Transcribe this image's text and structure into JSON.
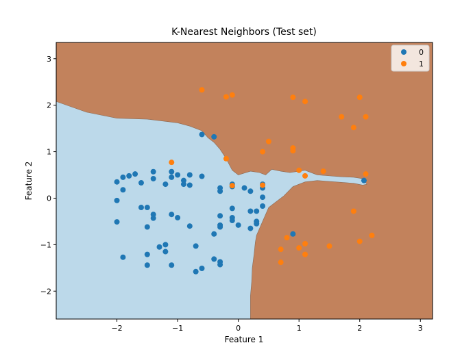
{
  "chart_data": {
    "type": "scatter",
    "title": "K-Nearest Neighbors (Test set)",
    "xlabel": "Feature 1",
    "ylabel": "Feature 2",
    "xlim": [
      -3.0,
      3.2
    ],
    "ylim": [
      -2.6,
      3.35
    ],
    "xticks": [
      -2,
      -1,
      0,
      1,
      2,
      3
    ],
    "yticks": [
      -2,
      -1,
      0,
      1,
      2,
      3
    ],
    "xtick_labels": [
      "−2",
      "−1",
      "0",
      "1",
      "2",
      "3"
    ],
    "ytick_labels": [
      "−2",
      "−1",
      "0",
      "1",
      "2",
      "3"
    ],
    "grid": false,
    "legend_placement": "top-right",
    "region_colors": {
      "0": "#bcd9ea",
      "1": "#c2825c"
    },
    "decision_boundary": [
      [
        -3.0,
        2.08
      ],
      [
        -2.5,
        1.85
      ],
      [
        -2.0,
        1.72
      ],
      [
        -1.5,
        1.7
      ],
      [
        -1.0,
        1.62
      ],
      [
        -0.8,
        1.55
      ],
      [
        -0.6,
        1.45
      ],
      [
        -0.5,
        1.3
      ],
      [
        -0.4,
        1.2
      ],
      [
        -0.3,
        1.05
      ],
      [
        -0.2,
        0.85
      ],
      [
        -0.1,
        0.6
      ],
      [
        0.0,
        0.5
      ],
      [
        0.2,
        0.58
      ],
      [
        0.35,
        0.55
      ],
      [
        0.45,
        0.5
      ],
      [
        0.55,
        0.62
      ],
      [
        0.7,
        0.58
      ],
      [
        0.85,
        0.55
      ],
      [
        1.0,
        0.58
      ],
      [
        1.1,
        0.6
      ],
      [
        1.3,
        0.5
      ],
      [
        1.5,
        0.48
      ],
      [
        1.7,
        0.46
      ],
      [
        1.9,
        0.45
      ],
      [
        2.05,
        0.42
      ],
      [
        2.12,
        0.3
      ],
      [
        2.05,
        0.28
      ],
      [
        1.9,
        0.32
      ],
      [
        1.6,
        0.35
      ],
      [
        1.3,
        0.38
      ],
      [
        1.1,
        0.35
      ],
      [
        0.9,
        0.25
      ],
      [
        0.75,
        0.05
      ],
      [
        0.6,
        -0.1
      ],
      [
        0.5,
        -0.2
      ],
      [
        0.45,
        -0.35
      ],
      [
        0.4,
        -0.5
      ],
      [
        0.35,
        -0.65
      ],
      [
        0.3,
        -0.8
      ],
      [
        0.28,
        -0.95
      ],
      [
        0.26,
        -1.2
      ],
      [
        0.23,
        -1.5
      ],
      [
        0.22,
        -1.8
      ],
      [
        0.2,
        -2.1
      ],
      [
        0.2,
        -2.6
      ]
    ],
    "series": [
      {
        "name": "0",
        "color": "#1f77b4",
        "points": [
          [
            -2.0,
            0.35
          ],
          [
            -1.9,
            0.45
          ],
          [
            -1.8,
            0.48
          ],
          [
            -1.7,
            0.52
          ],
          [
            -1.6,
            0.33
          ],
          [
            -1.4,
            0.57
          ],
          [
            -1.4,
            0.42
          ],
          [
            -1.2,
            0.3
          ],
          [
            -1.1,
            0.57
          ],
          [
            -1.1,
            0.45
          ],
          [
            -1.0,
            0.5
          ],
          [
            -0.9,
            0.38
          ],
          [
            -0.9,
            0.3
          ],
          [
            -0.8,
            0.5
          ],
          [
            -0.8,
            0.28
          ],
          [
            -0.6,
            0.47
          ],
          [
            -1.9,
            0.18
          ],
          [
            -2.0,
            -0.05
          ],
          [
            -1.6,
            -0.2
          ],
          [
            -1.5,
            -0.2
          ],
          [
            -1.4,
            -0.35
          ],
          [
            -1.4,
            -0.43
          ],
          [
            -1.5,
            -0.62
          ],
          [
            -1.1,
            -0.35
          ],
          [
            -1.0,
            -0.42
          ],
          [
            -0.8,
            -0.6
          ],
          [
            -2.0,
            -0.51
          ],
          [
            -0.6,
            1.37
          ],
          [
            -0.4,
            1.32
          ],
          [
            -0.3,
            0.22
          ],
          [
            -0.3,
            0.15
          ],
          [
            -0.1,
            0.3
          ],
          [
            -0.1,
            0.25
          ],
          [
            0.1,
            0.22
          ],
          [
            0.2,
            0.15
          ],
          [
            0.4,
            0.3
          ],
          [
            0.4,
            0.22
          ],
          [
            0.4,
            0.02
          ],
          [
            0.4,
            -0.17
          ],
          [
            0.2,
            -0.28
          ],
          [
            0.3,
            -0.28
          ],
          [
            -0.1,
            -0.22
          ],
          [
            -0.3,
            -0.38
          ],
          [
            -0.1,
            -0.42
          ],
          [
            -0.1,
            -0.48
          ],
          [
            -0.3,
            -0.58
          ],
          [
            -0.3,
            -0.62
          ],
          [
            0.0,
            -0.58
          ],
          [
            0.3,
            -0.5
          ],
          [
            0.3,
            -0.55
          ],
          [
            0.2,
            -0.65
          ],
          [
            -0.4,
            -0.77
          ],
          [
            0.9,
            -0.77
          ],
          [
            -1.3,
            -1.05
          ],
          [
            -1.2,
            -1.0
          ],
          [
            -1.2,
            -1.15
          ],
          [
            -0.7,
            -1.03
          ],
          [
            -1.5,
            -1.21
          ],
          [
            -1.9,
            -1.27
          ],
          [
            -0.4,
            -1.31
          ],
          [
            -0.3,
            -1.37
          ],
          [
            -0.3,
            -1.43
          ],
          [
            -1.5,
            -1.44
          ],
          [
            -1.1,
            -1.44
          ],
          [
            -0.6,
            -1.51
          ],
          [
            -0.7,
            -1.58
          ],
          [
            2.07,
            0.38
          ]
        ]
      },
      {
        "name": "1",
        "color": "#ff7f0e",
        "points": [
          [
            -0.6,
            2.33
          ],
          [
            -0.2,
            2.18
          ],
          [
            -0.1,
            2.22
          ],
          [
            0.9,
            2.17
          ],
          [
            1.1,
            2.08
          ],
          [
            2.0,
            2.17
          ],
          [
            1.7,
            1.75
          ],
          [
            2.1,
            1.75
          ],
          [
            1.9,
            1.52
          ],
          [
            0.5,
            1.22
          ],
          [
            0.4,
            1.0
          ],
          [
            0.9,
            1.08
          ],
          [
            0.9,
            1.02
          ],
          [
            -0.2,
            0.85
          ],
          [
            -1.1,
            0.77
          ],
          [
            1.0,
            0.6
          ],
          [
            1.1,
            0.48
          ],
          [
            1.4,
            0.58
          ],
          [
            2.1,
            0.52
          ],
          [
            -0.1,
            0.27
          ],
          [
            0.4,
            0.28
          ],
          [
            1.9,
            -0.28
          ],
          [
            0.8,
            -0.85
          ],
          [
            1.1,
            -0.98
          ],
          [
            1.0,
            -1.07
          ],
          [
            0.7,
            -1.1
          ],
          [
            1.5,
            -1.03
          ],
          [
            2.0,
            -0.93
          ],
          [
            2.2,
            -0.8
          ],
          [
            1.1,
            -1.21
          ],
          [
            0.7,
            -1.38
          ]
        ]
      }
    ]
  }
}
